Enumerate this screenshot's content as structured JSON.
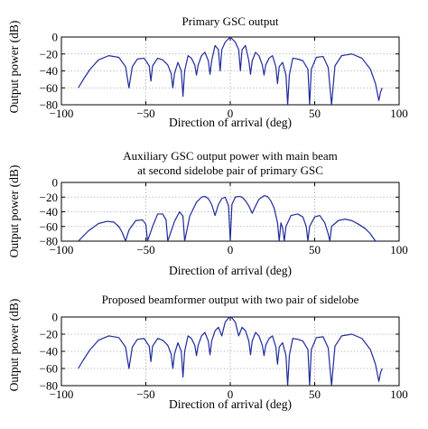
{
  "figure": {
    "background": "#ffffff",
    "line_color": "#1f2a9c",
    "grid_color": "#9a9a9a"
  },
  "chart_data": [
    {
      "type": "line",
      "title": [
        "Primary GSC output"
      ],
      "xlabel": "Direction of arrival (deg)",
      "ylabel": "Output power (dB)",
      "xlim": [
        -100,
        100
      ],
      "ylim": [
        -80,
        0
      ],
      "xticks": [
        -100,
        -50,
        0,
        50,
        100
      ],
      "yticks": [
        0,
        -20,
        -40,
        -60,
        -80
      ],
      "grid": true,
      "series": [
        {
          "x": [
            -90,
            -87,
            -83,
            -78,
            -72,
            -66,
            -62,
            -60,
            -58,
            -55,
            -51,
            -48,
            -47,
            -46,
            -43,
            -40,
            -37,
            -35,
            -34,
            -33,
            -31,
            -29,
            -28,
            -27,
            -25,
            -23,
            -21,
            -20,
            -19,
            -17,
            -15,
            -13,
            -12,
            -11,
            -9,
            -7,
            -6,
            -5,
            -3,
            0,
            3,
            5,
            6,
            7,
            9,
            11,
            12,
            13,
            15,
            17,
            19,
            20,
            21,
            23,
            25,
            27,
            28,
            29,
            31,
            33,
            34,
            35,
            37,
            40,
            43,
            46,
            47,
            48,
            51,
            55,
            58,
            60,
            62,
            66,
            72,
            78,
            83,
            86,
            88,
            89,
            90
          ],
          "y": [
            -60,
            -50,
            -38,
            -27,
            -22,
            -24,
            -35,
            -60,
            -35,
            -26,
            -25,
            -34,
            -52,
            -34,
            -25,
            -27,
            -33,
            -43,
            -60,
            -43,
            -30,
            -40,
            -70,
            -40,
            -22,
            -25,
            -33,
            -45,
            -33,
            -22,
            -18,
            -28,
            -44,
            -28,
            -10,
            -15,
            -40,
            -15,
            -6,
            0,
            -6,
            -15,
            -40,
            -15,
            -10,
            -28,
            -44,
            -28,
            -18,
            -22,
            -33,
            -45,
            -33,
            -25,
            -22,
            -35,
            -55,
            -35,
            -30,
            -45,
            -80,
            -45,
            -25,
            -26,
            -28,
            -38,
            -80,
            -38,
            -24,
            -23,
            -36,
            -80,
            -34,
            -22,
            -20,
            -25,
            -38,
            -55,
            -75,
            -65,
            -60
          ]
        }
      ]
    },
    {
      "type": "line",
      "title": [
        "Auxiliary GSC output power with main beam",
        "at second sidelobe pair of primary GSC"
      ],
      "xlabel": "Direction of arrival (deg)",
      "ylabel": "Output power (dB)",
      "xlim": [
        -100,
        100
      ],
      "ylim": [
        -80,
        0
      ],
      "xticks": [
        -100,
        -50,
        0,
        50,
        100
      ],
      "yticks": [
        0,
        -20,
        -40,
        -60,
        -80
      ],
      "grid": true,
      "series": [
        {
          "x": [
            -90,
            -84,
            -78,
            -73,
            -69,
            -66,
            -64,
            -62,
            -60,
            -56,
            -52,
            -50,
            -49,
            -46,
            -43,
            -40,
            -38,
            -37,
            -33,
            -30,
            -28,
            -27,
            -24,
            -20,
            -17,
            -15,
            -13,
            -11,
            -9,
            -7,
            -5,
            -3,
            -1,
            0,
            1,
            3,
            5,
            7,
            9,
            11,
            13,
            15,
            17,
            20,
            22,
            24,
            26,
            28,
            29,
            30,
            31,
            32,
            33,
            36,
            40,
            43,
            45,
            46,
            47,
            50,
            53,
            56,
            58,
            59,
            60,
            64,
            68,
            72,
            76,
            80,
            83,
            86,
            88,
            90
          ],
          "y": [
            -80,
            -66,
            -56,
            -53,
            -54,
            -60,
            -68,
            -80,
            -65,
            -52,
            -51,
            -57,
            -80,
            -60,
            -43,
            -43,
            -51,
            -80,
            -53,
            -40,
            -46,
            -80,
            -46,
            -27,
            -20,
            -19,
            -22,
            -30,
            -45,
            -30,
            -22,
            -20,
            -32,
            -80,
            -30,
            -20,
            -19,
            -20,
            -25,
            -32,
            -42,
            -32,
            -23,
            -18,
            -19,
            -25,
            -35,
            -55,
            -80,
            -55,
            -62,
            -80,
            -60,
            -45,
            -43,
            -47,
            -60,
            -80,
            -60,
            -47,
            -45,
            -55,
            -70,
            -80,
            -60,
            -52,
            -50,
            -52,
            -57,
            -63,
            -70,
            -80,
            -80,
            -80
          ]
        }
      ]
    },
    {
      "type": "line",
      "title": [
        "Proposed beamformer output with two pair of sidelobe"
      ],
      "xlabel": "Direction of arrival (deg)",
      "ylabel": "Output power (dB)",
      "xlim": [
        -100,
        100
      ],
      "ylim": [
        -80,
        0
      ],
      "xticks": [
        -100,
        -50,
        0,
        50,
        100
      ],
      "yticks": [
        0,
        -20,
        -40,
        -60,
        -80
      ],
      "grid": true,
      "series": [
        {
          "x": [
            -90,
            -87,
            -83,
            -78,
            -72,
            -66,
            -62,
            -60,
            -58,
            -55,
            -51,
            -48,
            -47,
            -46,
            -43,
            -40,
            -37,
            -35,
            -34,
            -33,
            -31,
            -29,
            -28,
            -27,
            -25,
            -23,
            -21,
            -20,
            -19,
            -17,
            -15,
            -13,
            -12,
            -11,
            -9,
            -7,
            -5,
            -3,
            -1,
            0,
            1,
            3,
            5,
            7,
            9,
            11,
            12,
            13,
            15,
            17,
            19,
            20,
            21,
            23,
            25,
            27,
            28,
            29,
            31,
            33,
            34,
            35,
            37,
            40,
            43,
            46,
            47,
            48,
            51,
            55,
            58,
            60,
            62,
            66,
            72,
            78,
            83,
            86,
            88,
            89,
            90
          ],
          "y": [
            -60,
            -50,
            -38,
            -27,
            -22,
            -24,
            -35,
            -60,
            -35,
            -26,
            -25,
            -34,
            -52,
            -34,
            -25,
            -27,
            -33,
            -43,
            -60,
            -43,
            -30,
            -40,
            -70,
            -40,
            -22,
            -25,
            -33,
            -45,
            -33,
            -22,
            -18,
            -28,
            -44,
            -28,
            -16,
            -12,
            -22,
            -6,
            -1,
            0,
            -1,
            -6,
            -22,
            -12,
            -16,
            -28,
            -44,
            -28,
            -18,
            -22,
            -33,
            -45,
            -33,
            -25,
            -22,
            -35,
            -55,
            -35,
            -30,
            -45,
            -80,
            -45,
            -25,
            -26,
            -28,
            -38,
            -80,
            -38,
            -24,
            -23,
            -36,
            -80,
            -34,
            -22,
            -20,
            -25,
            -38,
            -55,
            -75,
            -65,
            -60
          ]
        }
      ]
    }
  ]
}
